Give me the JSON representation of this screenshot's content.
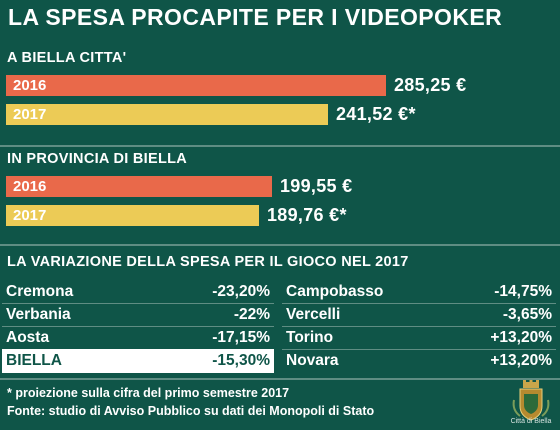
{
  "title": "LA SPESA PROCAPITE PER I VIDEOPOKER",
  "colors": {
    "background": "#0f5548",
    "bar_2016": "#e9694a",
    "bar_2017": "#eccb56",
    "divider": "#5f8d83"
  },
  "chart_data": [
    {
      "type": "bar",
      "orientation": "horizontal",
      "title": "A BIELLA CITTA'",
      "categories": [
        "2016",
        "2017"
      ],
      "values": [
        285.25,
        241.52
      ],
      "value_labels": [
        "285,25 €",
        "241,52 €*"
      ],
      "unit": "€"
    },
    {
      "type": "bar",
      "orientation": "horizontal",
      "title": "IN PROVINCIA DI BIELLA",
      "categories": [
        "2016",
        "2017"
      ],
      "values": [
        199.55,
        189.76
      ],
      "value_labels": [
        "199,55 €",
        "189,76 €*"
      ],
      "unit": "€"
    },
    {
      "type": "table",
      "title": "LA VARIAZIONE DELLA SPESA PER IL GIOCO NEL 2017",
      "left": [
        {
          "city": "Cremona",
          "pct": "-23,20%",
          "value": -23.2
        },
        {
          "city": "Verbania",
          "pct": "-22%",
          "value": -22
        },
        {
          "city": "Aosta",
          "pct": "-17,15%",
          "value": -17.15
        },
        {
          "city": "BIELLA",
          "pct": "-15,30%",
          "value": -15.3,
          "highlight": true
        }
      ],
      "right": [
        {
          "city": "Campobasso",
          "pct": "-14,75%",
          "value": -14.75
        },
        {
          "city": "Vercelli",
          "pct": "-3,65%",
          "value": -3.65
        },
        {
          "city": "Torino",
          "pct": "+13,20%",
          "value": 13.2
        },
        {
          "city": "Novara",
          "pct": "+13,20%",
          "value": 13.2
        }
      ]
    }
  ],
  "footnotes": {
    "projection": "* proiezione sulla cifra del primo semestre 2017",
    "source": "Fonte: studio di Avviso Pubblico su dati dei Monopoli di Stato"
  },
  "logo_text": "Città di Biella"
}
